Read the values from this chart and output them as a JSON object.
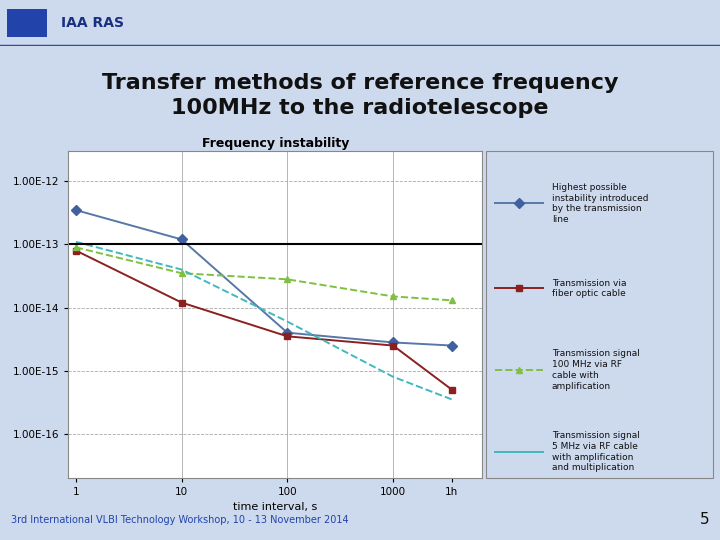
{
  "title": "Transfer methods of reference frequency\n100MHz to the radiotelescope",
  "chart_title": "Frequency instability",
  "xlabel": "time interval, s",
  "background_slide": "#cdd9ed",
  "background_chart": "#ffffff",
  "header_text": "IAA RAS",
  "footer_text": "3rd International VLBI Technology Workshop, 10 - 13 November 2014",
  "page_number": "5",
  "black_line_y": 1e-13,
  "series": [
    {
      "label": "Highest possible\ninstability introduced\nby the transmission\nline",
      "color": "#5878a8",
      "marker": "D",
      "marker_color": "#4060a0",
      "linestyle": "-",
      "x": [
        1,
        10,
        100,
        1000,
        3600
      ],
      "y": [
        3.5e-13,
        1.2e-13,
        4e-15,
        2.8e-15,
        2.5e-15
      ]
    },
    {
      "label": "Transmission via\nfiber optic cable",
      "color": "#8B2020",
      "marker": "s",
      "marker_color": "#8B2020",
      "linestyle": "-",
      "x": [
        1,
        10,
        100,
        1000,
        3600
      ],
      "y": [
        8e-14,
        1.2e-14,
        3.5e-15,
        2.5e-15,
        5e-16
      ]
    },
    {
      "label": "Transmission signal\n100 MHz via RF\ncable with\namplification",
      "color": "#80c040",
      "marker": "^",
      "marker_color": "#80c040",
      "linestyle": "--",
      "x": [
        1,
        10,
        100,
        1000,
        3600
      ],
      "y": [
        9e-14,
        3.5e-14,
        2.8e-14,
        1.5e-14,
        1.3e-14
      ]
    },
    {
      "label": "Transmission signal\n5 MHz via RF cable\nwith amplification\nand multiplication",
      "color": "#40b8c0",
      "marker": "",
      "marker_color": "#40b8c0",
      "linestyle": "--",
      "x": [
        1,
        10,
        100,
        1000,
        3600
      ],
      "y": [
        1.1e-13,
        4e-14,
        6e-15,
        8e-16,
        3.5e-16
      ]
    }
  ],
  "ytick_labels": [
    "1.00E-16",
    "1.00E-15",
    "1.00E-14",
    "1.00E-13",
    "1.00E-12"
  ],
  "ytick_vals": [
    1e-16,
    1e-15,
    1e-14,
    1e-13,
    1e-12
  ],
  "xtick_vals": [
    1,
    10,
    100,
    1000,
    3600
  ],
  "xtick_labels": [
    "1",
    "10",
    "100",
    "1000",
    "1h"
  ]
}
